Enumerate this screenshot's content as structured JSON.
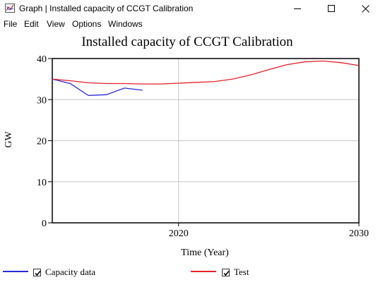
{
  "window": {
    "title": "Graph | Installed capacity of CCGT Calibration",
    "icon": "chart-window-icon",
    "controls": [
      "minimize-icon",
      "maximize-icon",
      "close-icon"
    ]
  },
  "menu": {
    "items": [
      "File",
      "Edit",
      "View",
      "Options",
      "Windows"
    ]
  },
  "legend": {
    "items": [
      {
        "label": "Capacity data",
        "checked": true,
        "color": "#2b2bdb"
      },
      {
        "label": "Test",
        "checked": true,
        "color": "#e8202a"
      }
    ]
  },
  "chart_data": {
    "type": "line",
    "title": "Installed capacity of CCGT Calibration",
    "xlabel": "Time (Year)",
    "ylabel": "GW",
    "xlim": [
      2013,
      2030
    ],
    "ylim": [
      0,
      40
    ],
    "x_ticks": [
      2020,
      2030
    ],
    "y_ticks": [
      0,
      10,
      20,
      30,
      40
    ],
    "grid": true,
    "legend_position": "bottom",
    "series": [
      {
        "name": "Capacity data",
        "color": "#2b2bdb",
        "x": [
          2013,
          2014,
          2015,
          2016,
          2017,
          2018
        ],
        "y": [
          35.0,
          33.9,
          31.0,
          31.2,
          32.8,
          32.3
        ]
      },
      {
        "name": "Test",
        "color": "#e8202a",
        "x": [
          2013,
          2014,
          2015,
          2016,
          2017,
          2018,
          2019,
          2020,
          2021,
          2022,
          2023,
          2024,
          2025,
          2026,
          2027,
          2028,
          2029,
          2030
        ],
        "y": [
          35.0,
          34.6,
          34.1,
          33.9,
          33.9,
          33.8,
          33.8,
          34.0,
          34.2,
          34.4,
          35.0,
          36.0,
          37.3,
          38.5,
          39.2,
          39.4,
          39.0,
          38.3
        ]
      }
    ]
  }
}
